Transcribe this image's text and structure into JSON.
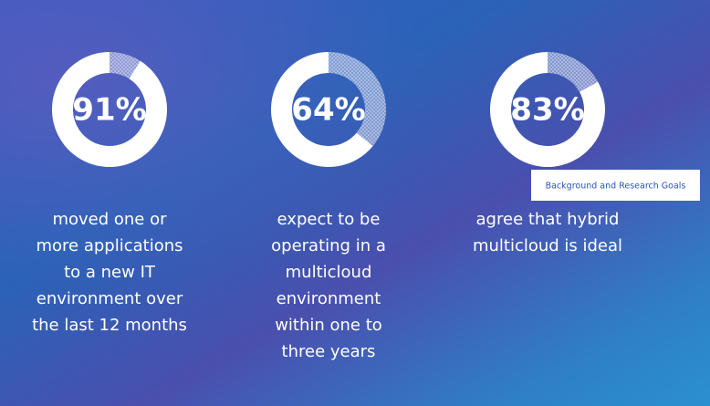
{
  "chart_data": [
    {
      "type": "donut",
      "values": [
        91
      ],
      "value_labels": [
        "91%"
      ],
      "max": 100,
      "annotation_lines": [
        "moved one or",
        "more applications",
        "to a new IT",
        "environment over",
        "the last 12 months"
      ],
      "color": "#ffffff"
    },
    {
      "type": "donut",
      "values": [
        64
      ],
      "value_labels": [
        "64%"
      ],
      "max": 100,
      "annotation_lines": [
        "expect to be",
        "operating in a",
        "multicloud",
        "environment",
        "within one to",
        "three years"
      ],
      "color": "#ffffff"
    },
    {
      "type": "donut",
      "values": [
        83
      ],
      "value_labels": [
        "83%"
      ],
      "max": 100,
      "annotation_lines": [
        "agree that hybrid",
        "multicloud is ideal"
      ],
      "color": "#ffffff"
    }
  ],
  "button": {
    "label": "Background and Research Goals"
  }
}
